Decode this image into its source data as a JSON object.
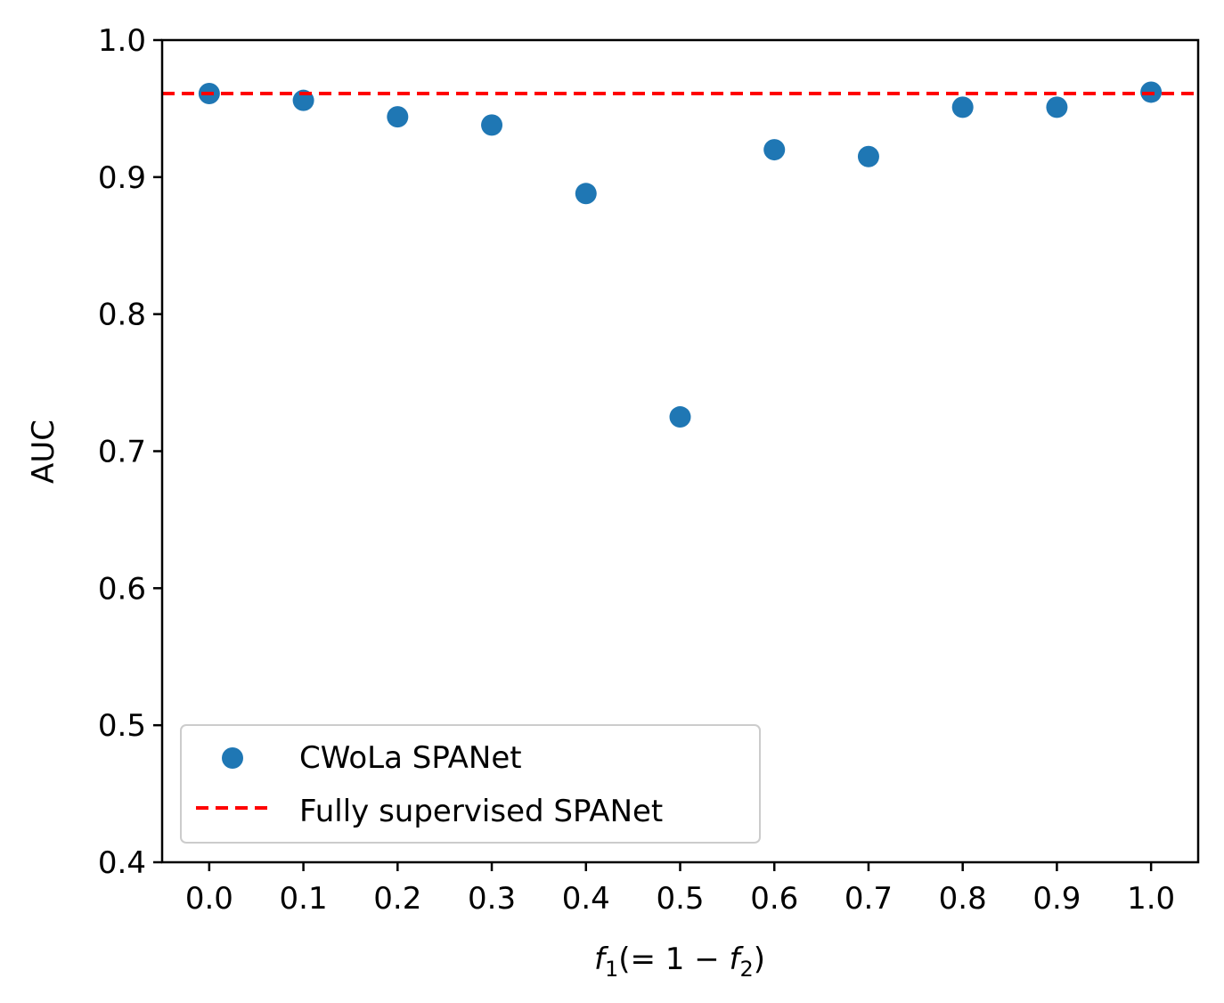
{
  "chart_data": {
    "type": "scatter",
    "title": "",
    "xlabel_parts": [
      "f",
      "1",
      "(= 1 − ",
      "f",
      "2",
      ")"
    ],
    "ylabel": "AUC",
    "xlim": [
      -0.05,
      1.05
    ],
    "ylim": [
      0.4,
      1.0
    ],
    "x_ticks": [
      "0.0",
      "0.1",
      "0.2",
      "0.3",
      "0.4",
      "0.5",
      "0.6",
      "0.7",
      "0.8",
      "0.9",
      "1.0"
    ],
    "y_ticks": [
      "0.4",
      "0.5",
      "0.6",
      "0.7",
      "0.8",
      "0.9",
      "1.0"
    ],
    "grid": false,
    "legend_position": "lower-left",
    "series": [
      {
        "name": "CWoLa SPANet",
        "kind": "scatter",
        "color": "#1f77b4",
        "x": [
          0.0,
          0.1,
          0.2,
          0.3,
          0.4,
          0.5,
          0.6,
          0.7,
          0.8,
          0.9,
          1.0
        ],
        "y": [
          0.961,
          0.956,
          0.944,
          0.938,
          0.888,
          0.725,
          0.92,
          0.915,
          0.951,
          0.951,
          0.962
        ]
      },
      {
        "name": "Fully supervised SPANet",
        "kind": "hline",
        "color": "#ff0000",
        "style": "dashed",
        "y": 0.961
      }
    ]
  }
}
